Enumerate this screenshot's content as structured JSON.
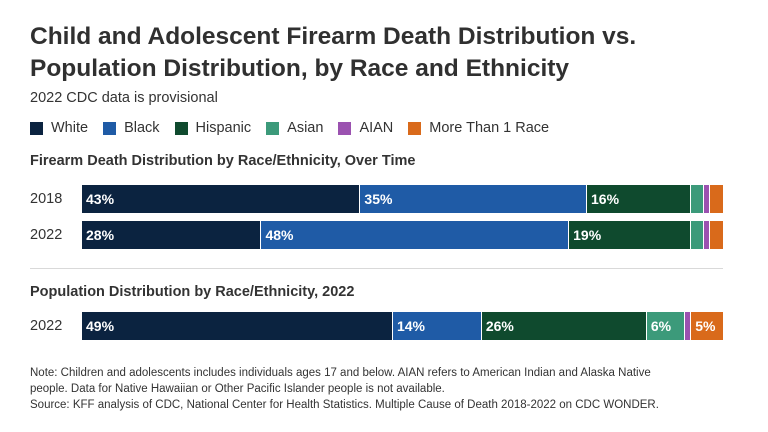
{
  "title_line1": "Child and Adolescent Firearm Death Distribution vs.",
  "title_line2": "Population Distribution, by Race and Ethnicity",
  "subtitle": "2022 CDC data is provisional",
  "legend": [
    {
      "label": "White",
      "color": "#0b2340"
    },
    {
      "label": "Black",
      "color": "#1f5ba6"
    },
    {
      "label": "Hispanic",
      "color": "#0f4a2e"
    },
    {
      "label": "Asian",
      "color": "#3c9a7a"
    },
    {
      "label": "AIAN",
      "color": "#9b52b0"
    },
    {
      "label": "More Than 1 Race",
      "color": "#d96a1b"
    }
  ],
  "chart_data": [
    {
      "type": "bar",
      "stacked": "100%",
      "orientation": "horizontal",
      "title": "Firearm Death Distribution by Race/Ethnicity, Over Time",
      "categories": [
        "2018",
        "2022"
      ],
      "series": [
        {
          "name": "White",
          "values": [
            43,
            28
          ],
          "labels": [
            "43%",
            "28%"
          ]
        },
        {
          "name": "Black",
          "values": [
            35,
            48
          ],
          "labels": [
            "35%",
            "48%"
          ]
        },
        {
          "name": "Hispanic",
          "values": [
            16,
            19
          ],
          "labels": [
            "16%",
            "19%"
          ]
        },
        {
          "name": "Asian",
          "values": [
            2,
            2
          ],
          "labels": [
            "",
            ""
          ]
        },
        {
          "name": "AIAN",
          "values": [
            1,
            1
          ],
          "labels": [
            "",
            ""
          ]
        },
        {
          "name": "More Than 1 Race",
          "values": [
            2,
            2
          ],
          "labels": [
            "",
            ""
          ]
        }
      ]
    },
    {
      "type": "bar",
      "stacked": "100%",
      "orientation": "horizontal",
      "title": "Population Distribution by Race/Ethnicity, 2022",
      "categories": [
        "2022"
      ],
      "series": [
        {
          "name": "White",
          "values": [
            49
          ],
          "labels": [
            "49%"
          ]
        },
        {
          "name": "Black",
          "values": [
            14
          ],
          "labels": [
            "14%"
          ]
        },
        {
          "name": "Hispanic",
          "values": [
            26
          ],
          "labels": [
            "26%"
          ]
        },
        {
          "name": "Asian",
          "values": [
            6
          ],
          "labels": [
            "6%"
          ]
        },
        {
          "name": "AIAN",
          "values": [
            1
          ],
          "labels": [
            ""
          ]
        },
        {
          "name": "More Than 1 Race",
          "values": [
            5
          ],
          "labels": [
            "5%"
          ]
        }
      ]
    }
  ],
  "notes": {
    "line1": "Note: Children and adolescents includes individuals ages 17 and below. AIAN refers to American Indian and Alaska Native",
    "line2": "people. Data for Native Hawaiian or Other Pacific Islander people is not available.",
    "line3": "Source: KFF analysis of CDC, National Center for Health Statistics. Multiple Cause of Death 2018-2022 on CDC WONDER."
  }
}
